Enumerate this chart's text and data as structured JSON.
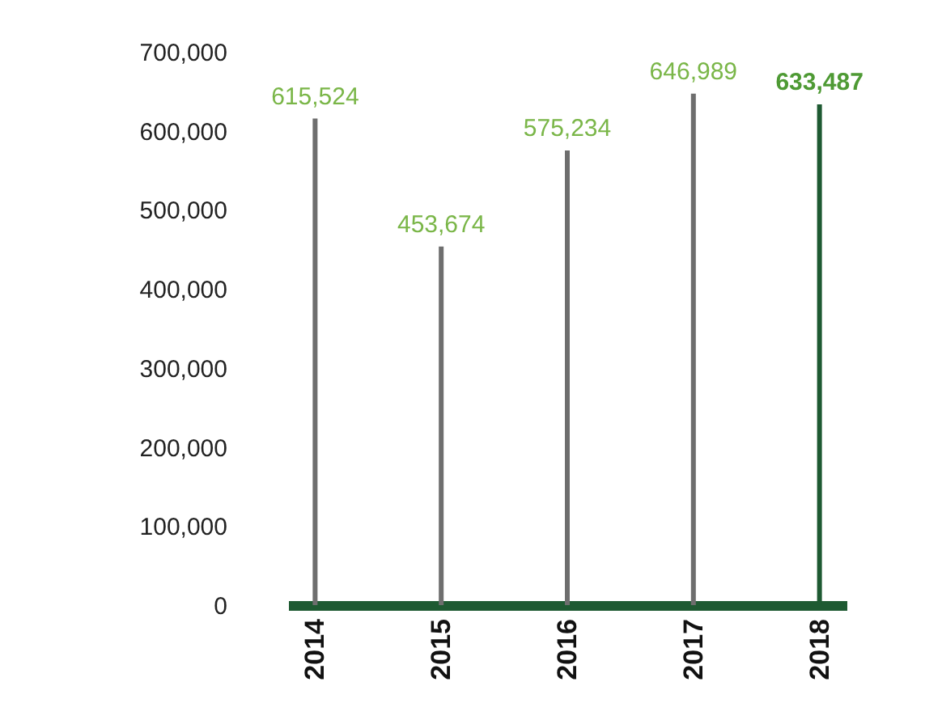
{
  "chart_data": {
    "type": "bar",
    "categories": [
      "2014",
      "2015",
      "2016",
      "2017",
      "2018"
    ],
    "values": [
      615524,
      453674,
      575234,
      646989,
      633487
    ],
    "value_labels": [
      "615,524",
      "453,674",
      "575,234",
      "646,989",
      "633,487"
    ],
    "colors": [
      "#6e6e6e",
      "#6e6e6e",
      "#6e6e6e",
      "#6e6e6e",
      "#1e5a32"
    ],
    "ylim": [
      0,
      700000
    ],
    "yticks": [
      0,
      {
        "value": 100000,
        "label": "100,000"
      },
      {
        "value": 200000,
        "label": "200,000"
      },
      {
        "value": 300000,
        "label": "300,000"
      },
      {
        "value": 400000,
        "label": "400,000"
      },
      {
        "value": 500000,
        "label": "500,000"
      },
      {
        "value": 600000,
        "label": "600,000"
      },
      {
        "value": 700000,
        "label": "700,000"
      }
    ],
    "grid": false
  }
}
